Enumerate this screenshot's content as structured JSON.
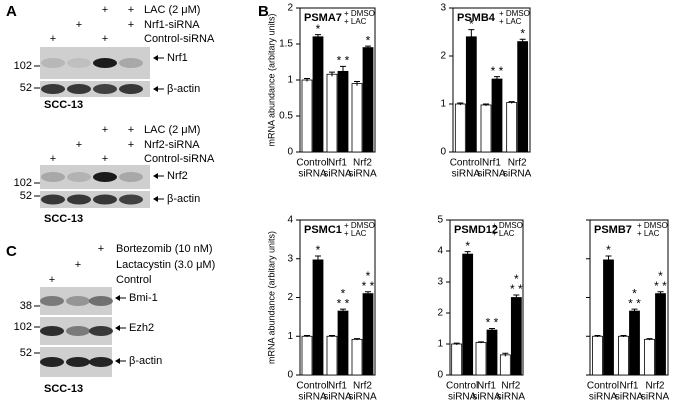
{
  "panel_a": {
    "label": "A",
    "blots": [
      {
        "rows": [
          {
            "label": "LAC (2 μM)",
            "lanes": [
              null,
              null,
              "+",
              "+"
            ]
          },
          {
            "label": "Nrf1-siRNA",
            "lanes": [
              null,
              "+",
              null,
              "+"
            ]
          },
          {
            "label": "Control-siRNA",
            "lanes": [
              "+",
              null,
              "+",
              null
            ]
          }
        ],
        "markers": [
          "102",
          "52"
        ],
        "bands": [
          "Nrf1",
          "β-actin"
        ],
        "cell_line": "SCC-13"
      },
      {
        "rows": [
          {
            "label": "LAC (2 μM)",
            "lanes": [
              null,
              null,
              "+",
              "+"
            ]
          },
          {
            "label": "Nrf2-siRNA",
            "lanes": [
              null,
              "+",
              null,
              "+"
            ]
          },
          {
            "label": "Control-siRNA",
            "lanes": [
              "+",
              null,
              "+",
              null
            ]
          }
        ],
        "markers": [
          "102",
          "52"
        ],
        "bands": [
          "Nrf2",
          "β-actin"
        ],
        "cell_line": "SCC-13"
      }
    ]
  },
  "panel_b": {
    "label": "B"
  },
  "panel_c": {
    "label": "C",
    "blots": [
      {
        "rows": [
          {
            "label": "Bortezomib (10 nM)",
            "lanes": [
              null,
              null,
              "+"
            ]
          },
          {
            "label": "Lactacystin (3.0 μM)",
            "lanes": [
              null,
              "+",
              null
            ]
          },
          {
            "label": "Control",
            "lanes": [
              "+",
              null,
              null
            ]
          }
        ],
        "markers": [
          "38",
          "102",
          "52"
        ],
        "bands": [
          "Bmi-1",
          "Ezh2",
          "β-actin"
        ],
        "cell_line": "SCC-13"
      }
    ]
  },
  "chart_data": [
    {
      "type": "bar",
      "title": "PSMA7",
      "y_label": "mRNA abundance (arbitary units)",
      "categories": [
        [
          "Control",
          "siRNA"
        ],
        [
          "Nrf1",
          "siRNA"
        ],
        [
          "Nrf2",
          "siRNA"
        ]
      ],
      "series": [
        {
          "name": "+ DMSO",
          "color": "#ffffff",
          "values": [
            1.0,
            1.08,
            0.95
          ],
          "errors": [
            0.02,
            0.03,
            0.03
          ]
        },
        {
          "name": "+ LAC",
          "color": "#000000",
          "values": [
            1.6,
            1.12,
            1.45
          ],
          "errors": [
            0.03,
            0.07,
            0.02
          ],
          "significance": [
            [
              "*"
            ],
            [
              "* *"
            ],
            [
              "*"
            ]
          ]
        }
      ],
      "ylim": [
        0,
        2
      ],
      "yticks": [
        0,
        0.5,
        1,
        1.5,
        2
      ],
      "tick_labels": true
    },
    {
      "type": "bar",
      "title": "PSMB4",
      "categories": [
        [
          "Control",
          "siRNA"
        ],
        [
          "Nrf1",
          "siRNA"
        ],
        [
          "Nrf2",
          "siRNA"
        ]
      ],
      "series": [
        {
          "name": "+ DMSO",
          "color": "#ffffff",
          "values": [
            1.0,
            0.98,
            1.03
          ],
          "errors": [
            0.02,
            0.02,
            0.02
          ]
        },
        {
          "name": "+ LAC",
          "color": "#000000",
          "values": [
            2.4,
            1.52,
            2.3
          ],
          "errors": [
            0.15,
            0.05,
            0.05
          ],
          "significance": [
            [
              "*"
            ],
            [
              "* *"
            ],
            [
              "*"
            ]
          ]
        }
      ],
      "ylim": [
        0,
        3
      ],
      "yticks": [
        0,
        1,
        2,
        3
      ],
      "tick_labels": true
    },
    {
      "type": "bar",
      "title": "PSMC1",
      "y_label": "mRNA abundance (arbitary units)",
      "categories": [
        [
          "Control",
          "siRNA"
        ],
        [
          "Nrf1",
          "siRNA"
        ],
        [
          "Nrf2",
          "siRNA"
        ]
      ],
      "series": [
        {
          "name": "+ DMSO",
          "color": "#ffffff",
          "values": [
            1.0,
            1.0,
            0.92
          ],
          "errors": [
            0.02,
            0.02,
            0.02
          ]
        },
        {
          "name": "+ LAC",
          "color": "#000000",
          "values": [
            2.97,
            1.65,
            2.1
          ],
          "errors": [
            0.1,
            0.05,
            0.05
          ],
          "significance": [
            [
              "*"
            ],
            [
              "*",
              "* *"
            ],
            [
              "*",
              "* *"
            ]
          ]
        }
      ],
      "ylim": [
        0,
        4
      ],
      "yticks": [
        0,
        1,
        2,
        3,
        4
      ],
      "tick_labels": true
    },
    {
      "type": "bar",
      "title": "PSMD12",
      "categories": [
        [
          "Control",
          "siRNA"
        ],
        [
          "Nrf1",
          "siRNA"
        ],
        [
          "Nrf2",
          "siRNA"
        ]
      ],
      "series": [
        {
          "name": "+ DMSO",
          "color": "#ffffff",
          "values": [
            1.0,
            1.05,
            0.65
          ],
          "errors": [
            0.03,
            0.02,
            0.05
          ]
        },
        {
          "name": "+ LAC",
          "color": "#000000",
          "values": [
            3.9,
            1.45,
            2.5
          ],
          "errors": [
            0.08,
            0.05,
            0.08
          ],
          "significance": [
            [
              "*"
            ],
            [
              "* *"
            ],
            [
              "*",
              "* *"
            ]
          ]
        }
      ],
      "ylim": [
        0,
        5
      ],
      "yticks": [
        0,
        1,
        2,
        3,
        4,
        5
      ],
      "tick_labels": true
    },
    {
      "type": "bar",
      "title": "PSMB7",
      "categories": [
        [
          "Control",
          "siRNA"
        ],
        [
          "Nrf1",
          "siRNA"
        ],
        [
          "Nrf2",
          "siRNA"
        ]
      ],
      "series": [
        {
          "name": "+ DMSO",
          "color": "#ffffff",
          "values": [
            1.0,
            1.0,
            0.92
          ],
          "errors": [
            0.02,
            0.02,
            0.02
          ]
        },
        {
          "name": "+ LAC",
          "color": "#000000",
          "values": [
            2.97,
            1.65,
            2.1
          ],
          "errors": [
            0.1,
            0.05,
            0.05
          ],
          "significance": [
            [
              "*"
            ],
            [
              "*",
              "* *"
            ],
            [
              "*",
              "* *"
            ]
          ]
        }
      ],
      "ylim": [
        0,
        4
      ],
      "yticks": [
        0,
        1,
        2,
        3,
        4
      ],
      "tick_labels": false
    }
  ]
}
